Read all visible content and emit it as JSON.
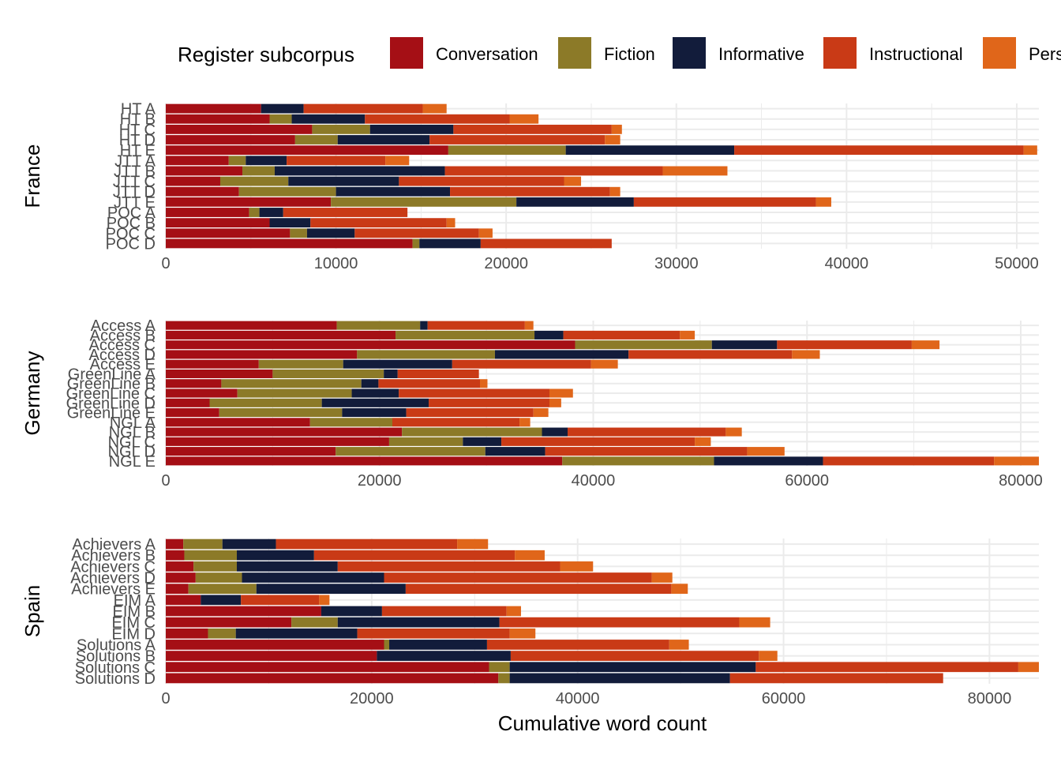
{
  "chart_data": {
    "type": "bar",
    "orientation": "horizontal",
    "stacked": true,
    "xlabel": "Cumulative word count",
    "legend": {
      "title": "Register subcorpus",
      "position": "top",
      "entries": [
        {
          "name": "Conversation",
          "color": "#A50F15"
        },
        {
          "name": "Fiction",
          "color": "#8C7A28"
        },
        {
          "name": "Informative",
          "color": "#121C3B"
        },
        {
          "name": "Instructional",
          "color": "#C93A16"
        },
        {
          "name": "Personal",
          "color": "#E0661A"
        }
      ]
    },
    "grid": true,
    "panels": [
      {
        "name": "France",
        "xlim": [
          0,
          51300
        ],
        "xticks": [
          0,
          10000,
          20000,
          30000,
          40000,
          50000
        ],
        "tick_labels": [
          "0",
          "10000",
          "20000",
          "30000",
          "40000",
          "50000"
        ],
        "categories": [
          "HT A",
          "HT B",
          "HT C",
          "HT D",
          "HT E",
          "JTT A",
          "JTT B",
          "JTT C",
          "JTT D",
          "JTT E",
          "POC A",
          "POC B",
          "POC C",
          "POC D"
        ],
        "series": [
          {
            "name": "Conversation",
            "values": [
              5600,
              6100,
              8600,
              7600,
              16600,
              3700,
              4500,
              3200,
              4300,
              9700,
              4900,
              6100,
              7300,
              14500
            ]
          },
          {
            "name": "Fiction",
            "values": [
              0,
              1300,
              3400,
              2500,
              6900,
              1000,
              1900,
              4000,
              5700,
              10900,
              600,
              0,
              1000,
              400
            ]
          },
          {
            "name": "Informative",
            "values": [
              2500,
              4300,
              4900,
              5400,
              9900,
              2400,
              10000,
              6500,
              6700,
              6900,
              1400,
              2400,
              2800,
              3600
            ]
          },
          {
            "name": "Instructional",
            "values": [
              7000,
              8500,
              9300,
              10300,
              17000,
              5800,
              12800,
              9700,
              9400,
              10700,
              7300,
              8000,
              7300,
              7700
            ]
          },
          {
            "name": "Personal",
            "values": [
              1400,
              1700,
              600,
              900,
              800,
              1400,
              3800,
              1000,
              600,
              900,
              0,
              500,
              800,
              0
            ]
          }
        ]
      },
      {
        "name": "Germany",
        "xlim": [
          0,
          81700
        ],
        "xticks": [
          0,
          20000,
          40000,
          60000,
          80000
        ],
        "tick_labels": [
          "0",
          "20000",
          "40000",
          "60000",
          "80000"
        ],
        "categories": [
          "Access A",
          "Access B",
          "Access C",
          "Access D",
          "Access E",
          "GreenLine A",
          "GreenLine B",
          "GreenLine C",
          "GreenLine D",
          "GreenLine E",
          "NGL A",
          "NGL B",
          "NGL C",
          "NGL D",
          "NGL E"
        ],
        "series": [
          {
            "name": "Conversation",
            "values": [
              16000,
              21500,
              38300,
              17900,
              8700,
              10000,
              5200,
              6700,
              4100,
              5000,
              13500,
              22100,
              20900,
              15900,
              37100
            ]
          },
          {
            "name": "Fiction",
            "values": [
              7800,
              13000,
              12800,
              12900,
              7900,
              10400,
              13100,
              10700,
              10500,
              11500,
              7700,
              13100,
              6900,
              14000,
              14200
            ]
          },
          {
            "name": "Informative",
            "values": [
              700,
              2700,
              6100,
              12500,
              10200,
              1300,
              1600,
              4400,
              10000,
              6000,
              0,
              2400,
              3600,
              5600,
              10200
            ]
          },
          {
            "name": "Instructional",
            "values": [
              9100,
              10900,
              12600,
              15300,
              13000,
              7600,
              9500,
              14100,
              11300,
              11900,
              11900,
              14800,
              18100,
              18900,
              16000
            ]
          },
          {
            "name": "Personal",
            "values": [
              800,
              1400,
              2600,
              2600,
              2500,
              0,
              700,
              2200,
              1100,
              1400,
              1000,
              1500,
              1500,
              3500,
              4200
            ]
          }
        ]
      },
      {
        "name": "Spain",
        "xlim": [
          0,
          84800
        ],
        "xticks": [
          0,
          20000,
          40000,
          60000,
          80000
        ],
        "tick_labels": [
          "0",
          "20000",
          "40000",
          "60000",
          "80000"
        ],
        "categories": [
          "Achievers A",
          "Achievers B",
          "Achievers C",
          "Achievers D",
          "Achievers E",
          "EIM A",
          "EIM B",
          "EIM C",
          "EIM D",
          "Solutions A",
          "Solutions B",
          "Solutions C",
          "Solutions D"
        ],
        "series": [
          {
            "name": "Conversation",
            "values": [
              1700,
              1800,
              2700,
              2900,
              2200,
              3400,
              15100,
              12200,
              4100,
              21200,
              20500,
              31400,
              32300
            ]
          },
          {
            "name": "Fiction",
            "values": [
              3800,
              5100,
              4200,
              4500,
              6600,
              0,
              0,
              4500,
              2700,
              500,
              0,
              2000,
              1100
            ]
          },
          {
            "name": "Informative",
            "values": [
              5200,
              7500,
              9800,
              13800,
              14500,
              3900,
              5900,
              15700,
              11800,
              9500,
              13000,
              23900,
              21400
            ]
          },
          {
            "name": "Instructional",
            "values": [
              17600,
              19500,
              21600,
              26000,
              25800,
              7600,
              12100,
              23300,
              14800,
              17700,
              24100,
              25500,
              20700
            ]
          },
          {
            "name": "Personal",
            "values": [
              3000,
              2900,
              3200,
              2000,
              1600,
              1000,
              1400,
              3000,
              2500,
              1900,
              1800,
              2000,
              0
            ]
          }
        ]
      }
    ]
  }
}
